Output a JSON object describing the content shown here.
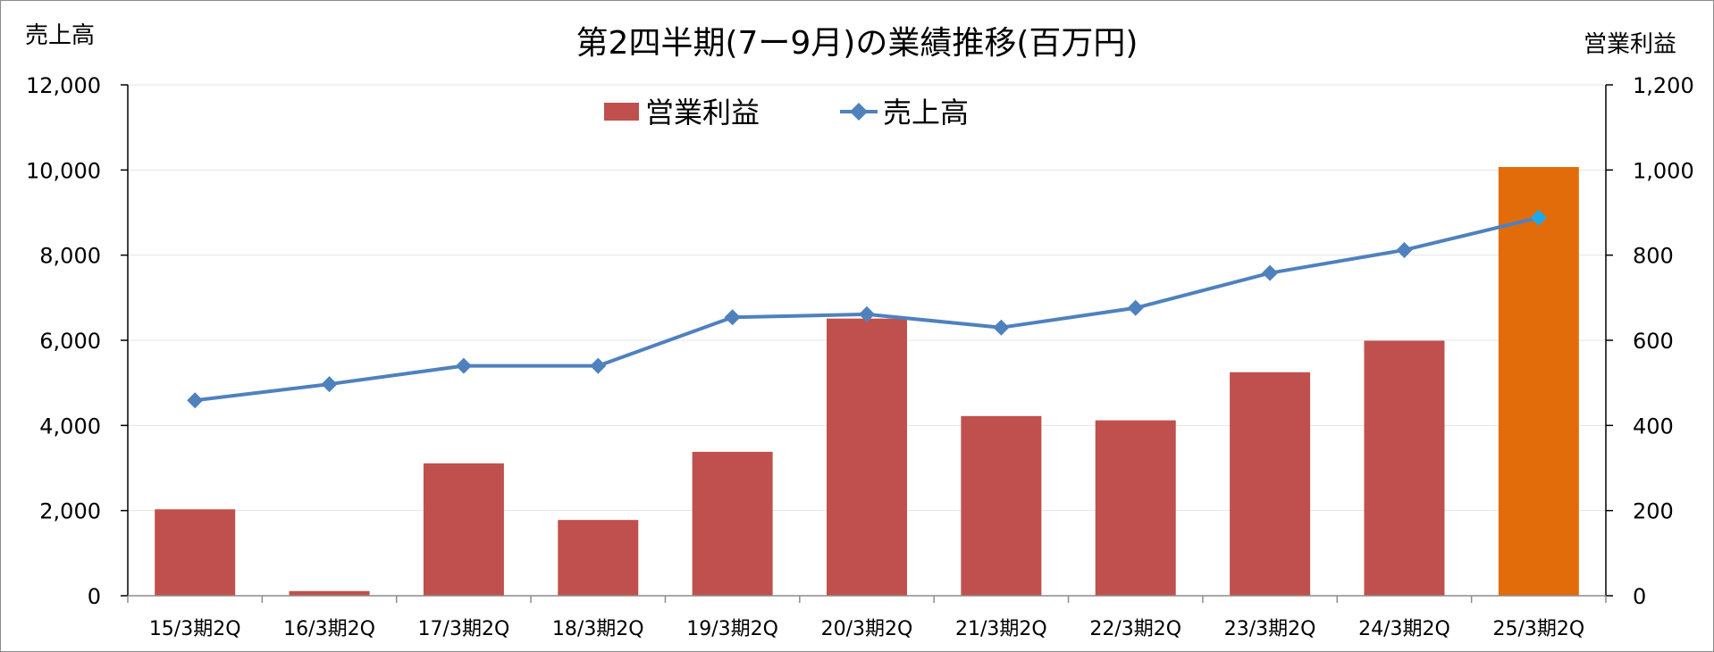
{
  "chart_data": {
    "type": "bar+line",
    "title": "第2四半期(7ー9月)の業績推移(百万円)",
    "left_axis_label": "売上高",
    "right_axis_label": "営業利益",
    "categories": [
      "15/3期2Q",
      "16/3期2Q",
      "17/3期2Q",
      "18/3期2Q",
      "19/3期2Q",
      "20/3期2Q",
      "21/3期2Q",
      "22/3期2Q",
      "23/3期2Q",
      "24/3期2Q",
      "25/3期2Q"
    ],
    "series": [
      {
        "name": "営業利益",
        "type": "bar",
        "axis": "right",
        "color": "#C0504D",
        "highlight_color": "#E36C0A",
        "highlight_index": 10,
        "values": [
          203,
          11,
          311,
          178,
          338,
          651,
          422,
          412,
          525,
          599,
          1007
        ]
      },
      {
        "name": "売上高",
        "type": "line",
        "axis": "left",
        "color": "#4F81BD",
        "highlight_marker_color": "#1FA8E8",
        "highlight_index": 10,
        "values": [
          4590,
          4970,
          5400,
          5400,
          6540,
          6610,
          6300,
          6760,
          7580,
          8120,
          8880
        ]
      }
    ],
    "left_axis": {
      "min": 0,
      "max": 12000,
      "step": 2000,
      "ticks": [
        "0",
        "2,000",
        "4,000",
        "6,000",
        "8,000",
        "10,000",
        "12,000"
      ]
    },
    "right_axis": {
      "min": 0,
      "max": 1200,
      "step": 200,
      "ticks": [
        "0",
        "200",
        "400",
        "600",
        "800",
        "1,000",
        "1,200"
      ]
    },
    "legend_placement": "top-center",
    "grid": true
  }
}
